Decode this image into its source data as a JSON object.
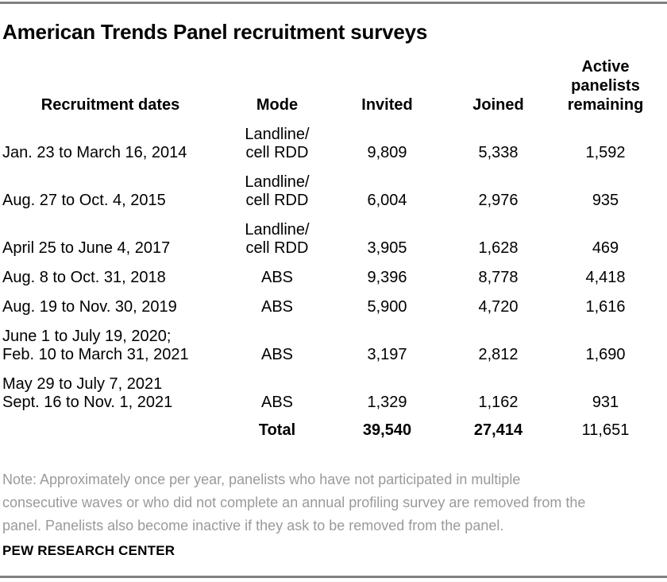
{
  "title": "American Trends Panel recruitment surveys",
  "colors": {
    "text": "#000000",
    "note_gray": "#9a9a9a",
    "rule_gray": "#808080",
    "background": "#ffffff"
  },
  "table": {
    "columns": {
      "dates": "Recruitment dates",
      "mode": "Mode",
      "invited": "Invited",
      "joined": "Joined",
      "remaining": "Active\npanelists\nremaining"
    },
    "rows": [
      {
        "dates": "Jan. 23 to March 16, 2014",
        "mode": "Landline/\ncell RDD",
        "invited": "9,809",
        "joined": "5,338",
        "remaining": "1,592"
      },
      {
        "dates": "Aug. 27 to Oct. 4, 2015",
        "mode": "Landline/\ncell RDD",
        "invited": "6,004",
        "joined": "2,976",
        "remaining": "935"
      },
      {
        "dates": "April 25 to June 4, 2017",
        "mode": "Landline/\ncell RDD",
        "invited": "3,905",
        "joined": "1,628",
        "remaining": "469"
      },
      {
        "dates": "Aug. 8 to Oct. 31, 2018",
        "mode": "ABS",
        "invited": "9,396",
        "joined": "8,778",
        "remaining": "4,418"
      },
      {
        "dates": "Aug. 19 to Nov. 30, 2019",
        "mode": "ABS",
        "invited": "5,900",
        "joined": "4,720",
        "remaining": "1,616"
      },
      {
        "dates": "June 1 to July 19, 2020;\nFeb. 10 to March 31, 2021",
        "mode": "ABS",
        "invited": "3,197",
        "joined": "2,812",
        "remaining": "1,690"
      },
      {
        "dates": "May 29 to July 7, 2021\nSept. 16 to Nov. 1, 2021",
        "mode": "ABS",
        "invited": "1,329",
        "joined": "1,162",
        "remaining": "931"
      }
    ],
    "total": {
      "label": "Total",
      "invited": "39,540",
      "joined": "27,414",
      "remaining": "11,651"
    }
  },
  "note": "Note: Approximately once per year, panelists who have not participated in multiple\nconsecutive waves or who did not complete an annual profiling survey are removed from the\npanel. Panelists also become inactive if they ask to be removed from the panel.",
  "source": "PEW RESEARCH CENTER",
  "chart_data": {
    "type": "table",
    "title": "American Trends Panel recruitment surveys",
    "columns": [
      "Recruitment dates",
      "Mode",
      "Invited",
      "Joined",
      "Active panelists remaining"
    ],
    "rows": [
      [
        "Jan. 23 to March 16, 2014",
        "Landline/cell RDD",
        9809,
        5338,
        1592
      ],
      [
        "Aug. 27 to Oct. 4, 2015",
        "Landline/cell RDD",
        6004,
        2976,
        935
      ],
      [
        "April 25 to June 4, 2017",
        "Landline/cell RDD",
        3905,
        1628,
        469
      ],
      [
        "Aug. 8 to Oct. 31, 2018",
        "ABS",
        9396,
        8778,
        4418
      ],
      [
        "Aug. 19 to Nov. 30, 2019",
        "ABS",
        5900,
        4720,
        1616
      ],
      [
        "June 1 to July 19, 2020; Feb. 10 to March 31, 2021",
        "ABS",
        3197,
        2812,
        1690
      ],
      [
        "May 29 to July 7, 2021 Sept. 16 to Nov. 1, 2021",
        "ABS",
        1329,
        1162,
        931
      ]
    ],
    "total_row": [
      "",
      "Total",
      39540,
      27414,
      11651
    ],
    "note": "Note: Approximately once per year, panelists who have not participated in multiple consecutive waves or who did not complete an annual profiling survey are removed from the panel. Panelists also become inactive if they ask to be removed from the panel.",
    "source": "PEW RESEARCH CENTER"
  }
}
